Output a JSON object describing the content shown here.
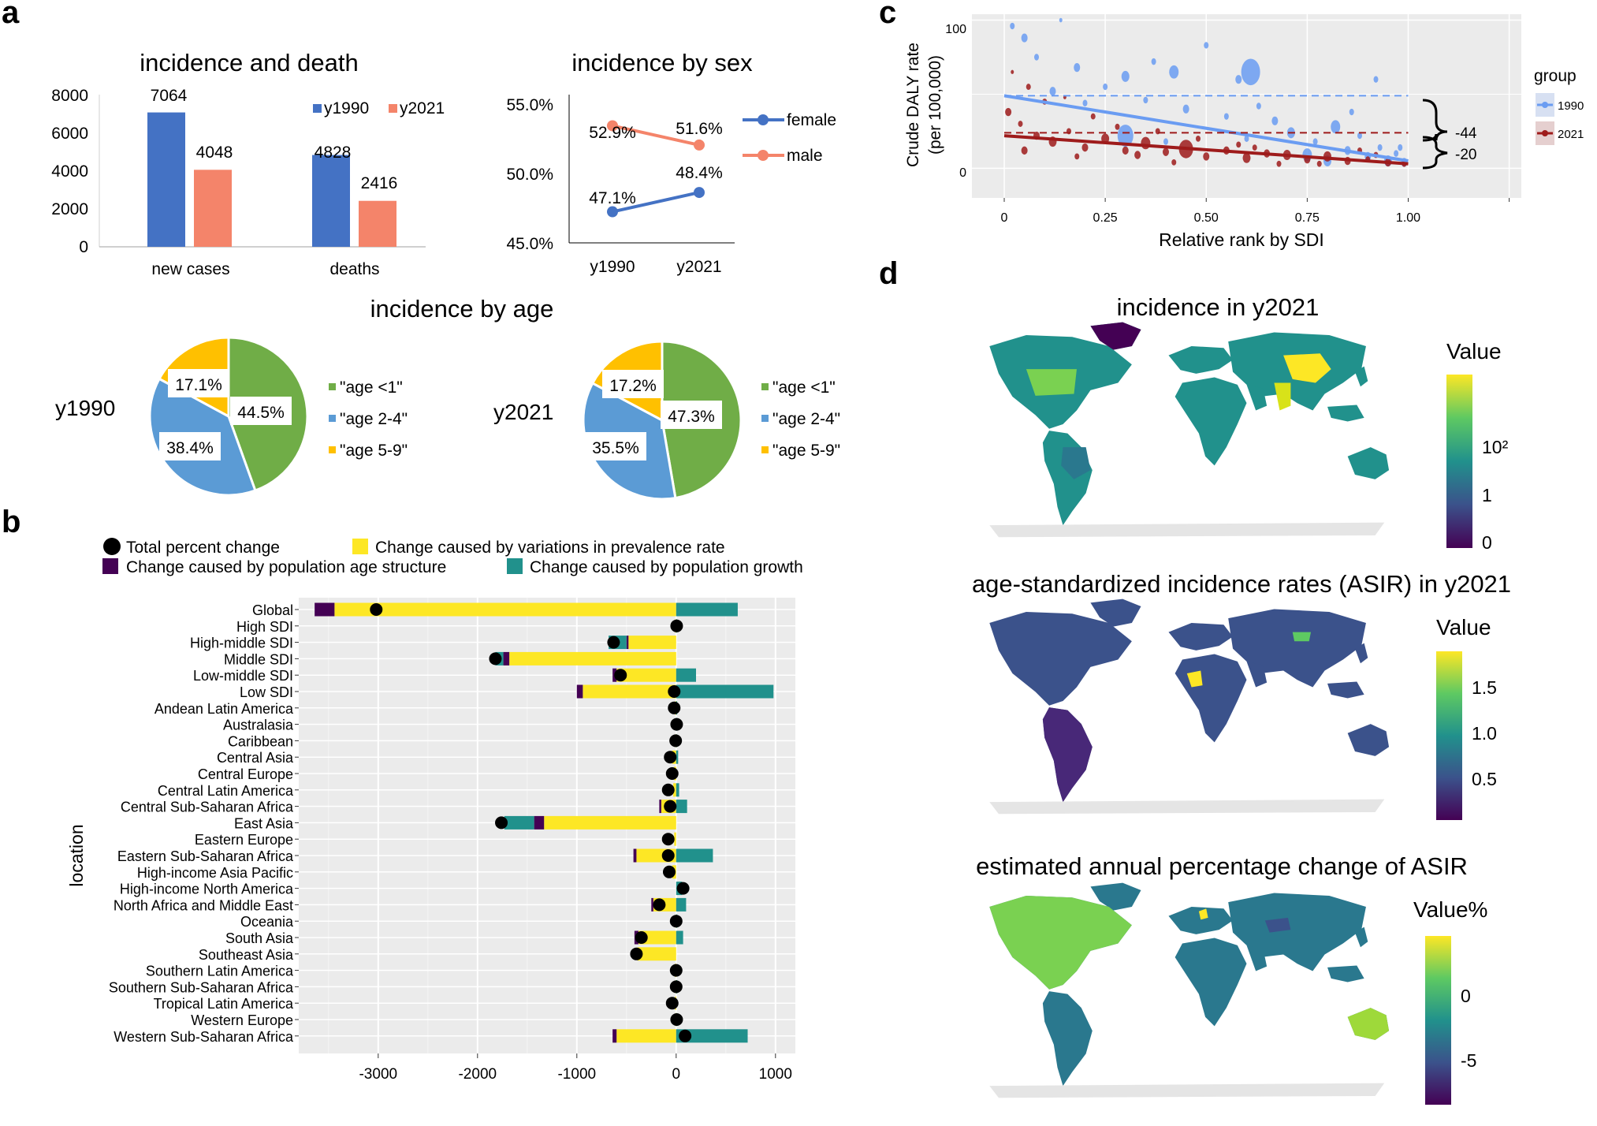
{
  "panels": {
    "a": "a",
    "b": "b",
    "c": "c",
    "d": "d"
  },
  "colors": {
    "blue": "#4472C4",
    "orange": "#F4846A",
    "green": "#70AD47",
    "lightblue": "#5B9BD5",
    "gold": "#FFC000",
    "purple": "#440154",
    "teal": "#21918C",
    "yellow": "#FDE725",
    "c_blue": "#6A9CF2",
    "c_red": "#9E1B1B",
    "panel_bg": "#EBEBEB"
  },
  "chart_data": [
    {
      "id": "a1",
      "type": "bar",
      "title": "incidence and death",
      "categories": [
        "new cases",
        "deaths"
      ],
      "series": [
        {
          "name": "y1990",
          "values": [
            7064,
            4828
          ],
          "color": "#4472C4"
        },
        {
          "name": "y2021",
          "values": [
            4048,
            2416
          ],
          "color": "#F4846A"
        }
      ],
      "ylim": [
        0,
        8000
      ],
      "yticks": [
        "0",
        "2000",
        "4000",
        "6000",
        "8000"
      ],
      "data_labels": [
        "7064",
        "4828",
        "4048",
        "2416"
      ]
    },
    {
      "id": "a2",
      "type": "line",
      "title": "incidence by sex",
      "x": [
        "y1990",
        "y2021"
      ],
      "series": [
        {
          "name": "female",
          "values": [
            47.1,
            48.4
          ],
          "labels": [
            "47.1%",
            "48.4%"
          ],
          "color": "#4472C4"
        },
        {
          "name": "male",
          "values": [
            52.9,
            51.6
          ],
          "labels": [
            "52.9%",
            "51.6%"
          ],
          "color": "#F4846A"
        }
      ],
      "ylim": [
        45,
        55
      ],
      "yticks": [
        "45.0%",
        "50.0%",
        "55.0%"
      ]
    },
    {
      "id": "a3",
      "type": "pie",
      "title": "incidence by age",
      "legend": [
        "\"age <1\"",
        "\"age 2-4\"",
        "\"age 5-9\""
      ],
      "pies": [
        {
          "name": "y1990",
          "values": [
            44.5,
            38.4,
            17.1
          ],
          "labels": [
            "44.5%",
            "38.4%",
            "17.1%"
          ]
        },
        {
          "name": "y2021",
          "values": [
            47.3,
            35.5,
            17.2
          ],
          "labels": [
            "47.3%",
            "35.5%",
            "17.2%"
          ]
        }
      ]
    },
    {
      "id": "b",
      "type": "bar",
      "orientation": "horizontal-stacked",
      "legend": [
        "Total percent change",
        "Change caused by variations in prevalence rate",
        "Change caused by population age structure",
        "Change caused by population growth"
      ],
      "ylabel": "location",
      "xlim": [
        -3800,
        1200
      ],
      "xticks": [
        "-3000",
        "-2000",
        "-1000",
        "0",
        "1000"
      ],
      "categories": [
        "Global",
        "High SDI",
        "High-middle SDI",
        "Middle SDI",
        "Low-middle SDI",
        "Low SDI",
        "Andean Latin America",
        "Australasia",
        "Caribbean",
        "Central Asia",
        "Central Europe",
        "Central Latin America",
        "Central Sub-Saharan Africa",
        "East Asia",
        "Eastern Europe",
        "Eastern Sub-Saharan Africa",
        "High-income Asia Pacific",
        "High-income North America",
        "North Africa and Middle East",
        "Oceania",
        "South Asia",
        "Southeast Asia",
        "Southern Latin America",
        "Southern Sub-Saharan Africa",
        "Tropical Latin America",
        "Western Europe",
        "Western Sub-Saharan Africa"
      ],
      "prevalence": [
        -3440,
        -10,
        -480,
        -1680,
        -600,
        -940,
        -10,
        0,
        -5,
        -40,
        -20,
        -30,
        -150,
        -1330,
        -20,
        -400,
        -40,
        0,
        -230,
        -5,
        -380,
        -390,
        -10,
        -5,
        -10,
        -5,
        -600
      ],
      "age_structure": [
        -200,
        0,
        -20,
        -60,
        -40,
        -60,
        0,
        0,
        0,
        0,
        0,
        0,
        -20,
        -100,
        0,
        -30,
        0,
        0,
        -20,
        0,
        -40,
        0,
        0,
        0,
        0,
        0,
        -40
      ],
      "growth": [
        620,
        10,
        -180,
        -80,
        200,
        980,
        10,
        5,
        5,
        20,
        0,
        30,
        110,
        -300,
        0,
        370,
        0,
        60,
        100,
        10,
        70,
        0,
        0,
        10,
        0,
        5,
        720
      ],
      "total": [
        -3020,
        5,
        -630,
        -1820,
        -560,
        -20,
        -20,
        5,
        -5,
        -60,
        -40,
        -80,
        -60,
        -1760,
        -80,
        -80,
        -70,
        70,
        -170,
        0,
        -350,
        -400,
        0,
        0,
        -40,
        5,
        90
      ]
    },
    {
      "id": "c",
      "type": "scatter",
      "xlabel": "Relative rank by SDI",
      "ylabel": "Crude DALY rate (per 100,000)",
      "ylabel_lines": [
        "Crude DALY rate",
        "(per 100,000)"
      ],
      "xlim": [
        -0.08,
        1.28
      ],
      "ylim": [
        -20,
        104
      ],
      "xticks": [
        "0",
        "0.25",
        "0.50",
        "0.75",
        "1.00"
      ],
      "yticks": [
        "0",
        "100"
      ],
      "legend_title": "group",
      "series": [
        {
          "name": "1990",
          "fit": [
            49,
            5
          ],
          "mean": 49
        },
        {
          "name": "2021",
          "fit": [
            22,
            3
          ],
          "mean": 24
        }
      ],
      "annotations": [
        "-44",
        "-20"
      ]
    },
    {
      "id": "d",
      "type": "map",
      "maps": [
        {
          "title": "incidence in y2021",
          "legend_title": "Value",
          "legend_ticks": [
            "10²",
            "1",
            "0"
          ]
        },
        {
          "title": "age-standardized incidence rates (ASIR) in y2021",
          "legend_title": "Value",
          "legend_ticks": [
            "1.5",
            "1.0",
            "0.5"
          ]
        },
        {
          "title": "estimated annual percentage change of ASIR",
          "legend_title": "Value%",
          "legend_ticks": [
            "0",
            "-5"
          ]
        }
      ]
    }
  ]
}
